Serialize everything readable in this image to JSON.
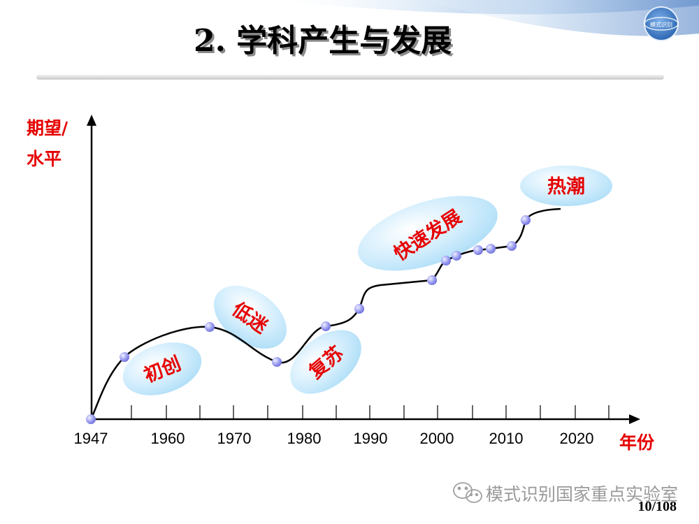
{
  "slide": {
    "title": "2. 学科产生与发展",
    "page_number": "10/108",
    "watermark": "模式识别国家重点实验室",
    "logo_text": "模式识别",
    "colors": {
      "label_red": "#e60000",
      "bubble": "#b8e4fb",
      "point": "#9b9bf0",
      "axis": "#000000"
    }
  },
  "chart_data": {
    "type": "line",
    "ylabel_line1": "期望/",
    "ylabel_line2": "水平",
    "xlabel": "年份",
    "x_ticks": [
      "1947",
      "1960",
      "1970",
      "1980",
      "1990",
      "2000",
      "2010",
      "2020"
    ],
    "stages": [
      {
        "label": "初创"
      },
      {
        "label": "低迷"
      },
      {
        "label": "复苏"
      },
      {
        "label": "快速发展"
      },
      {
        "label": "热潮"
      }
    ],
    "point_years": [
      1947,
      1952,
      1966,
      1976,
      1984,
      1989,
      2000,
      2002,
      2003,
      2006,
      2008,
      2011,
      2013
    ]
  }
}
